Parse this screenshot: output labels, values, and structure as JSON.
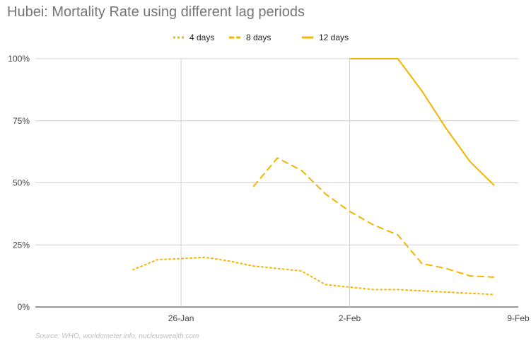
{
  "chart_data": {
    "type": "line",
    "title": "Hubei: Mortality Rate using different lag periods",
    "source": "Source: WHO, worldometer.info, nucleuswealth.com",
    "xlabel": "",
    "ylabel": "",
    "x_ticks": [
      {
        "label": "26-Jan",
        "day": 26
      },
      {
        "label": "2-Feb",
        "day": 33
      },
      {
        "label": "9-Feb",
        "day": 40
      }
    ],
    "xlim": [
      19.95,
      40
    ],
    "y_ticks": [
      "0%",
      "25%",
      "50%",
      "75%",
      "100%"
    ],
    "ylim": [
      0,
      100
    ],
    "grid": true,
    "legend_position": "top",
    "series": [
      {
        "name": "4 days",
        "style": "dotted",
        "color": "#F4B400",
        "points": [
          {
            "date": "24-Jan",
            "day": 24,
            "value": 15
          },
          {
            "date": "25-Jan",
            "day": 25,
            "value": 19
          },
          {
            "date": "27-Jan",
            "day": 27,
            "value": 20
          },
          {
            "date": "28-Jan",
            "day": 28,
            "value": 18.5
          },
          {
            "date": "29-Jan",
            "day": 29,
            "value": 16.5
          },
          {
            "date": "30-Jan",
            "day": 30,
            "value": 15.5
          },
          {
            "date": "31-Jan",
            "day": 31,
            "value": 14.5
          },
          {
            "date": "1-Feb",
            "day": 32,
            "value": 9
          },
          {
            "date": "2-Feb",
            "day": 33,
            "value": 8
          },
          {
            "date": "3-Feb",
            "day": 34,
            "value": 7
          },
          {
            "date": "4-Feb",
            "day": 35,
            "value": 7
          },
          {
            "date": "5-Feb",
            "day": 36,
            "value": 6.5
          },
          {
            "date": "6-Feb",
            "day": 37,
            "value": 6
          },
          {
            "date": "7-Feb",
            "day": 38,
            "value": 5.5
          },
          {
            "date": "8-Feb",
            "day": 39,
            "value": 5
          }
        ]
      },
      {
        "name": "8 days",
        "style": "dashed",
        "color": "#F4B400",
        "points": [
          {
            "date": "29-Jan",
            "day": 29,
            "value": 48.5
          },
          {
            "date": "30-Jan",
            "day": 30,
            "value": 60
          },
          {
            "date": "31-Jan",
            "day": 31,
            "value": 55
          },
          {
            "date": "1-Feb",
            "day": 32,
            "value": 45.5
          },
          {
            "date": "2-Feb",
            "day": 33,
            "value": 38.5
          },
          {
            "date": "3-Feb",
            "day": 34,
            "value": 33
          },
          {
            "date": "4-Feb",
            "day": 35,
            "value": 29
          },
          {
            "date": "5-Feb",
            "day": 36,
            "value": 17.5
          },
          {
            "date": "6-Feb",
            "day": 37,
            "value": 15.5
          },
          {
            "date": "7-Feb",
            "day": 38,
            "value": 12.5
          },
          {
            "date": "8-Feb",
            "day": 39,
            "value": 12
          }
        ]
      },
      {
        "name": "12 days",
        "style": "solid",
        "color": "#F4B400",
        "points": [
          {
            "date": "2-Feb",
            "day": 33,
            "value": 100
          },
          {
            "date": "3-Feb",
            "day": 34,
            "value": 100
          },
          {
            "date": "4-Feb",
            "day": 35,
            "value": 100
          },
          {
            "date": "5-Feb",
            "day": 36,
            "value": 87
          },
          {
            "date": "6-Feb",
            "day": 37,
            "value": 72
          },
          {
            "date": "7-Feb",
            "day": 38,
            "value": 58.5
          },
          {
            "date": "8-Feb",
            "day": 39,
            "value": 49
          }
        ]
      }
    ]
  }
}
